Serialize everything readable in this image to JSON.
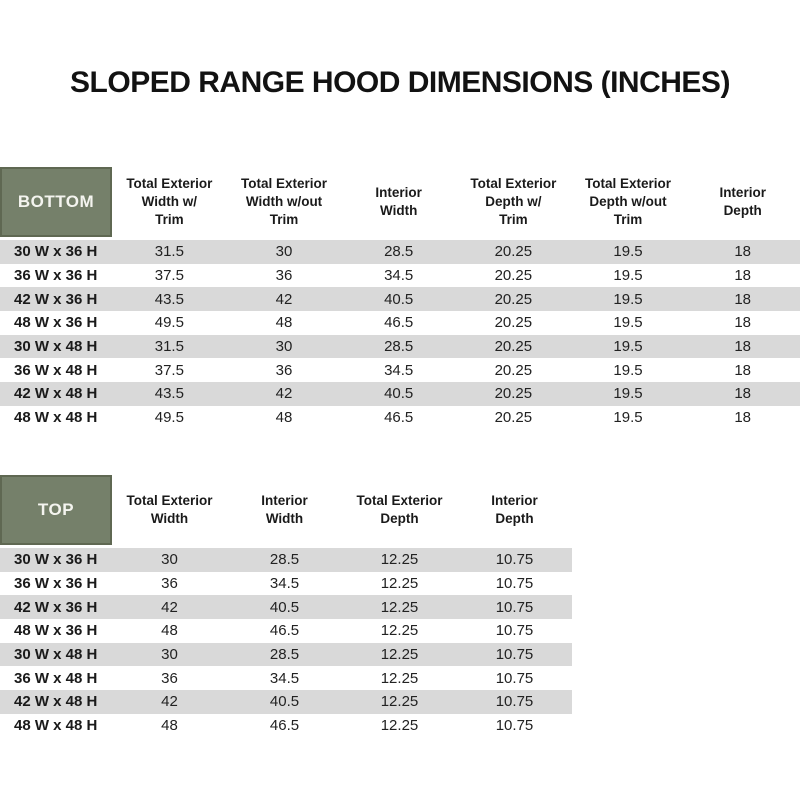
{
  "page": {
    "title": "SLOPED RANGE HOOD DIMENSIONS (INCHES)"
  },
  "colors": {
    "header_green": "#75806A",
    "header_green_border": "#5F6852",
    "stripe_gray": "#D9D9D9",
    "background": "#FFFFFF",
    "text": "#1A1A1A",
    "corner_text": "#F4F4EF"
  },
  "tables": [
    {
      "id": "bottom",
      "corner_label": "BOTTOM",
      "headers": [
        [
          "Total Exterior",
          "Width w/",
          "Trim"
        ],
        [
          "Total Exterior",
          "Width w/out",
          "Trim"
        ],
        [
          "Interior",
          "Width"
        ],
        [
          "Total Exterior",
          "Depth w/",
          "Trim"
        ],
        [
          "Total Exterior",
          "Depth w/out",
          "Trim"
        ],
        [
          "Interior",
          "Depth"
        ]
      ],
      "rows": [
        {
          "label": "30 W x 36 H",
          "values": [
            "31.5",
            "30",
            "28.5",
            "20.25",
            "19.5",
            "18"
          ]
        },
        {
          "label": "36 W x 36 H",
          "values": [
            "37.5",
            "36",
            "34.5",
            "20.25",
            "19.5",
            "18"
          ]
        },
        {
          "label": "42 W x 36 H",
          "values": [
            "43.5",
            "42",
            "40.5",
            "20.25",
            "19.5",
            "18"
          ]
        },
        {
          "label": "48 W x 36 H",
          "values": [
            "49.5",
            "48",
            "46.5",
            "20.25",
            "19.5",
            "18"
          ]
        },
        {
          "label": "30 W x 48 H",
          "values": [
            "31.5",
            "30",
            "28.5",
            "20.25",
            "19.5",
            "18"
          ]
        },
        {
          "label": "36 W x 48 H",
          "values": [
            "37.5",
            "36",
            "34.5",
            "20.25",
            "19.5",
            "18"
          ]
        },
        {
          "label": "42 W x 48 H",
          "values": [
            "43.5",
            "42",
            "40.5",
            "20.25",
            "19.5",
            "18"
          ]
        },
        {
          "label": "48 W x 48 H",
          "values": [
            "49.5",
            "48",
            "46.5",
            "20.25",
            "19.5",
            "18"
          ]
        }
      ]
    },
    {
      "id": "top",
      "corner_label": "TOP",
      "headers": [
        [
          "Total Exterior",
          "Width"
        ],
        [
          "Interior",
          "Width"
        ],
        [
          "Total Exterior",
          "Depth"
        ],
        [
          "Interior",
          "Depth"
        ]
      ],
      "rows": [
        {
          "label": "30 W x 36 H",
          "values": [
            "30",
            "28.5",
            "12.25",
            "10.75"
          ]
        },
        {
          "label": "36 W x 36 H",
          "values": [
            "36",
            "34.5",
            "12.25",
            "10.75"
          ]
        },
        {
          "label": "42 W x 36 H",
          "values": [
            "42",
            "40.5",
            "12.25",
            "10.75"
          ]
        },
        {
          "label": "48 W x 36 H",
          "values": [
            "48",
            "46.5",
            "12.25",
            "10.75"
          ]
        },
        {
          "label": "30 W x 48 H",
          "values": [
            "30",
            "28.5",
            "12.25",
            "10.75"
          ]
        },
        {
          "label": "36 W x 48 H",
          "values": [
            "36",
            "34.5",
            "12.25",
            "10.75"
          ]
        },
        {
          "label": "42 W x 48 H",
          "values": [
            "42",
            "40.5",
            "12.25",
            "10.75"
          ]
        },
        {
          "label": "48 W x 48 H",
          "values": [
            "48",
            "46.5",
            "12.25",
            "10.75"
          ]
        }
      ]
    }
  ]
}
